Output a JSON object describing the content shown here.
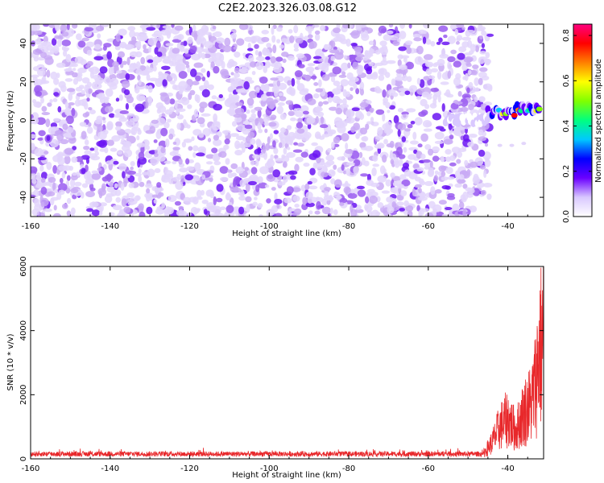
{
  "title": "C2E2.2023.326.03.08.G12",
  "chart_data": [
    {
      "type": "heatmap",
      "xlabel": "Height of straight line (km)",
      "ylabel": "Frequency (Hz)",
      "xlim": [
        -160,
        -31
      ],
      "ylim": [
        -50,
        50
      ],
      "xticks": [
        -160,
        -140,
        -120,
        -100,
        -80,
        -60,
        -40
      ],
      "yticks": [
        -40,
        -20,
        0,
        20,
        40
      ],
      "colorbar": {
        "label": "Normalized spectral amplitude",
        "range": [
          0.0,
          0.85
        ],
        "ticks": [
          "0.0",
          "0.2",
          "0.4",
          "0.6",
          "0.8"
        ],
        "colors": [
          "#ffffff",
          "#d9c8ff",
          "#6a00ff",
          "#0000ff",
          "#00c8ff",
          "#00ff80",
          "#80ff00",
          "#ffff00",
          "#ff8000",
          "#ff0000",
          "#ff0080"
        ]
      },
      "noise_extent_km": [
        -160,
        -45
      ],
      "signal_segments": [
        {
          "x_start": -56,
          "x_end": -45,
          "freq": 0,
          "peak": 0.25
        },
        {
          "x_start": -45,
          "x_end": -38,
          "freq": 4,
          "peak": 0.75
        },
        {
          "x_start": -38,
          "x_end": -32,
          "freq": 6,
          "peak": 0.8
        }
      ]
    },
    {
      "type": "line",
      "xlabel": "Height of straight line (km)",
      "ylabel": "SNR (10 * v/v)",
      "xlim": [
        -160,
        -31
      ],
      "ylim": [
        0,
        6000
      ],
      "xticks": [
        -160,
        -140,
        -120,
        -100,
        -80,
        -60,
        -40
      ],
      "yticks": [
        0,
        2000,
        4000,
        6000
      ],
      "series": [
        {
          "color": "#e8272a",
          "baseline": 180,
          "x": [
            -160,
            -60,
            -50,
            -46,
            -44,
            -42,
            -40,
            -38,
            -36,
            -34,
            -33,
            -32,
            -31
          ],
          "values": [
            180,
            200,
            220,
            300,
            800,
            1600,
            2000,
            1400,
            2300,
            2800,
            3800,
            5500,
            6000
          ]
        }
      ]
    }
  ]
}
